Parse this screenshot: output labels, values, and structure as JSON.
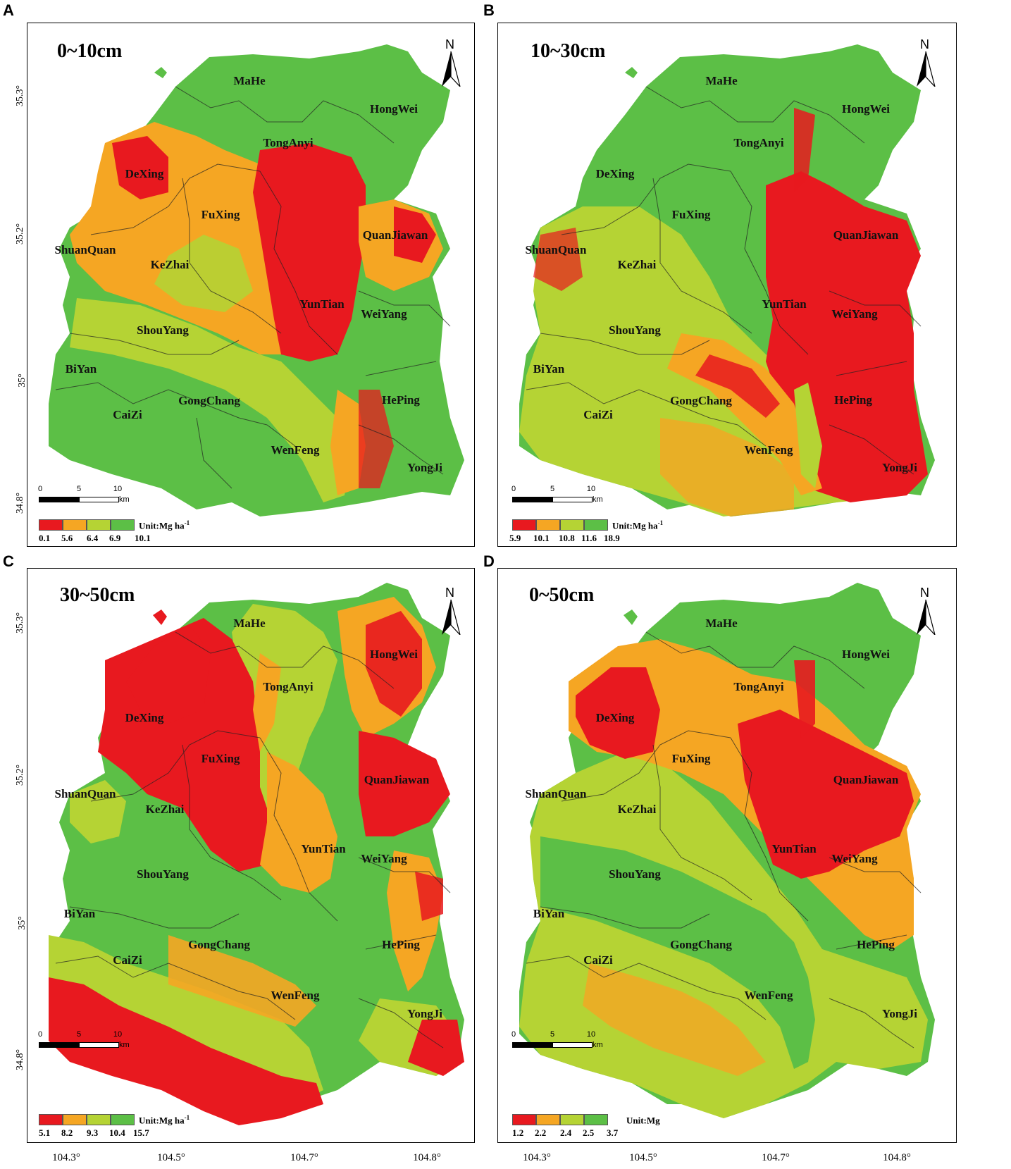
{
  "colors": {
    "red": "#e8191f",
    "orange": "#f5a623",
    "yellowgreen": "#b5d334",
    "green": "#5cbf46"
  },
  "panels": [
    {
      "letter": "A",
      "depth": "0~10cm",
      "unit": "Unit:Mg ha",
      "unit_sup": "-1",
      "breaks": [
        "0.1",
        "5.6",
        "6.4",
        "6.9",
        "10.1"
      ],
      "latitudes": [
        "35.3°",
        "35.2°",
        "35°",
        "34.8°"
      ],
      "towns": [
        "MaHe",
        "HongWei",
        "TongAnyi",
        "DeXing",
        "FuXing",
        "QuanJiawan",
        "ShuanQuan",
        "KeZhai",
        "YunTian",
        "WeiYang",
        "ShouYang",
        "BiYan",
        "CaiZi",
        "GongChang",
        "HePing",
        "WenFeng",
        "YongJi"
      ]
    },
    {
      "letter": "B",
      "depth": "10~30cm",
      "unit": "Unit:Mg ha",
      "unit_sup": "-1",
      "breaks": [
        "5.9",
        "10.1",
        "10.8",
        "11.6",
        "18.9"
      ],
      "towns": [
        "MaHe",
        "HongWei",
        "TongAnyi",
        "DeXing",
        "FuXing",
        "QuanJiawan",
        "ShuanQuan",
        "KeZhai",
        "YunTian",
        "WeiYang",
        "ShouYang",
        "BiYan",
        "CaiZi",
        "GongChang",
        "HePing",
        "WenFeng",
        "YongJi"
      ]
    },
    {
      "letter": "C",
      "depth": "30~50cm",
      "unit": "Unit:Mg ha",
      "unit_sup": "-1",
      "breaks": [
        "5.1",
        "8.2",
        "9.3",
        "10.4",
        "15.7"
      ],
      "latitudes": [
        "35.3°",
        "35.2°",
        "35°",
        "34.8°"
      ],
      "longitudes": [
        "104.3°",
        "104.5°",
        "104.7°",
        "104.8°"
      ],
      "towns": [
        "MaHe",
        "HongWei",
        "TongAnyi",
        "DeXing",
        "FuXing",
        "QuanJiawan",
        "ShuanQuan",
        "KeZhai",
        "YunTian",
        "WeiYang",
        "ShouYang",
        "BiYan",
        "CaiZi",
        "GongChang",
        "HePing",
        "WenFeng",
        "YongJi"
      ]
    },
    {
      "letter": "D",
      "depth": "0~50cm",
      "unit": "Unit:Mg",
      "unit_sup": "",
      "breaks": [
        "1.2",
        "2.2",
        "2.4",
        "2.5",
        "3.7"
      ],
      "longitudes": [
        "104.3°",
        "104.5°",
        "104.7°",
        "104.8°"
      ],
      "towns": [
        "MaHe",
        "HongWei",
        "TongAnyi",
        "DeXing",
        "FuXing",
        "QuanJiawan",
        "ShuanQuan",
        "KeZhai",
        "YunTian",
        "WeiYang",
        "ShouYang",
        "BiYan",
        "CaiZi",
        "GongChang",
        "HePing",
        "WenFeng",
        "YongJi"
      ]
    }
  ],
  "north_label": "N",
  "scale": {
    "ticks": [
      "0",
      "5",
      "10"
    ],
    "unit": "km"
  }
}
